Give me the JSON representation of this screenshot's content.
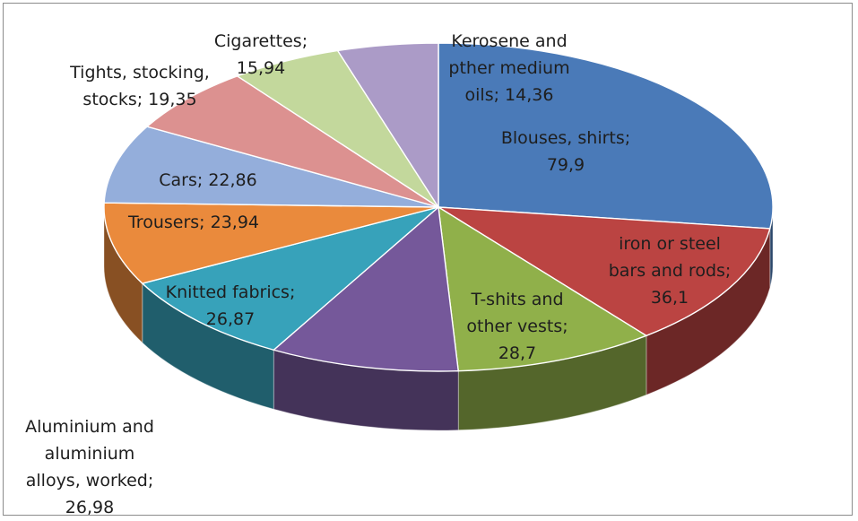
{
  "chart_data": {
    "type": "pie",
    "style": "3d-exploded-pie",
    "legend": "none",
    "slices": [
      {
        "label": "Blouses, shirts",
        "value": 79.9,
        "value_text": "79,9",
        "color": "#4a7ab8"
      },
      {
        "label": "iron or steel bars and rods",
        "value": 36.1,
        "value_text": "36,1",
        "color": "#bb4442"
      },
      {
        "label": "T-shits and other vests",
        "value": 28.7,
        "value_text": "28,7",
        "color": "#90b04a"
      },
      {
        "label": "Aluminium and aluminium alloys, worked",
        "value": 26.98,
        "value_text": "26,98",
        "color": "#75589a"
      },
      {
        "label": "Knitted fabrics",
        "value": 26.87,
        "value_text": "26,87",
        "color": "#37a2ba"
      },
      {
        "label": "Trousers",
        "value": 23.94,
        "value_text": "23,94",
        "color": "#ea8a3c"
      },
      {
        "label": "Cars",
        "value": 22.86,
        "value_text": "22,86",
        "color": "#94aedb"
      },
      {
        "label": "Tights, stocking, stocks",
        "value": 19.35,
        "value_text": "19,35",
        "color": "#dc9190"
      },
      {
        "label": "Cigarettes",
        "value": 15.94,
        "value_text": "15,94",
        "color": "#c3d89c"
      },
      {
        "label": "Kerosene and pther medium oils",
        "value": 14.36,
        "value_text": "14,36",
        "color": "#ab9bc7"
      }
    ]
  },
  "labels": [
    {
      "text": "Blouses, shirts;\n79,9"
    },
    {
      "text": "iron or steel\nbars and rods;\n36,1"
    },
    {
      "text": "T-shits and\nother vests;\n28,7"
    },
    {
      "text": "Aluminium and\naluminium\nalloys, worked;\n26,98"
    },
    {
      "text": "Knitted fabrics;\n26,87"
    },
    {
      "text": "Trousers; 23,94"
    },
    {
      "text": "Cars; 22,86"
    },
    {
      "text": "Tights, stocking,\nstocks; 19,35"
    },
    {
      "text": "Cigarettes;\n15,94"
    },
    {
      "text": "Kerosene and\npther medium\noils; 14,36"
    }
  ]
}
